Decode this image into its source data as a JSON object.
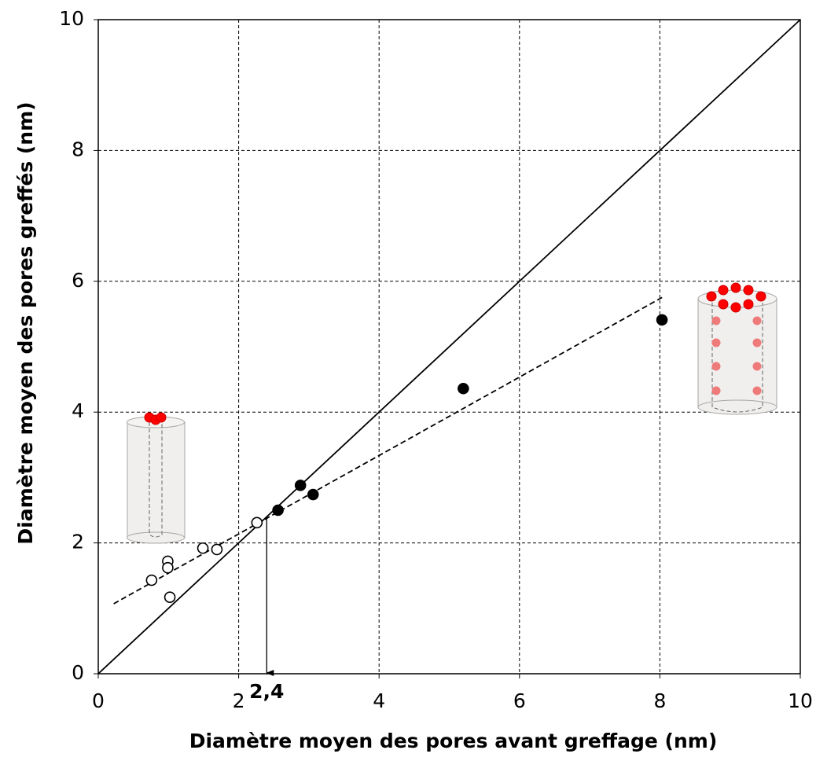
{
  "chart_data": {
    "type": "scatter",
    "x_label": "Diamètre moyen des pores avant greffage (nm)",
    "y_label": "Diamètre moyen des pores greffés (nm)",
    "xlim": [
      0,
      10
    ],
    "ylim": [
      0,
      10
    ],
    "xticks": [
      0,
      2,
      4,
      6,
      8,
      10
    ],
    "yticks": [
      0,
      2,
      4,
      6,
      8,
      10
    ],
    "grid": true,
    "series": [
      {
        "color": "#000000",
        "filled": false,
        "x": [
          0.76,
          0.99,
          0.99,
          1.02,
          1.49,
          1.69,
          2.26
        ],
        "values": [
          1.43,
          1.72,
          1.62,
          1.17,
          1.92,
          1.9,
          2.31
        ]
      },
      {
        "color": "#000000",
        "filled": true,
        "x": [
          2.56,
          2.88,
          3.06,
          5.2,
          8.03
        ],
        "values": [
          2.5,
          2.88,
          2.74,
          4.36,
          5.41
        ]
      }
    ],
    "lines": [
      {
        "style": "solid",
        "x": [
          0,
          10
        ],
        "values": [
          0,
          10
        ]
      },
      {
        "style": "dashed",
        "x": [
          0.22,
          8.06
        ],
        "values": [
          1.07,
          5.77
        ]
      }
    ],
    "annotation": {
      "text": "2,4",
      "x": 2.4,
      "y_start": 2.37
    }
  }
}
